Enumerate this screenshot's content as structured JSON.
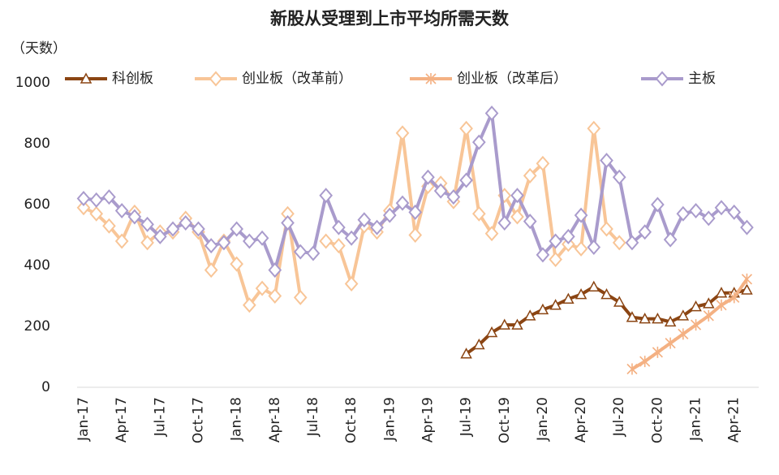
{
  "chart_data": {
    "type": "line",
    "title": "新股从受理到上市平均所需天数",
    "y_label": "（天数）",
    "categories": [
      "Jan-17",
      null,
      null,
      "Apr-17",
      null,
      null,
      "Jul-17",
      null,
      null,
      "Oct-17",
      null,
      null,
      "Jan-18",
      null,
      null,
      "Apr-18",
      null,
      null,
      "Jul-18",
      null,
      null,
      "Oct-18",
      null,
      null,
      "Jan-19",
      null,
      null,
      "Apr-19",
      null,
      null,
      "Jul-19",
      null,
      null,
      "Oct-19",
      null,
      null,
      "Jan-20",
      null,
      null,
      "Apr-20",
      null,
      null,
      "Jul-20",
      null,
      null,
      "Oct-20",
      null,
      null,
      "Jan-21",
      null,
      null,
      "Apr-21",
      null
    ],
    "ylim": [
      0,
      1000
    ],
    "yticks": [
      0,
      200,
      400,
      600,
      800,
      1000
    ],
    "grid": false,
    "series": [
      {
        "name": "科创板",
        "color": "#8b4513",
        "marker": "triangle",
        "values": [
          null,
          null,
          null,
          null,
          null,
          null,
          null,
          null,
          null,
          null,
          null,
          null,
          null,
          null,
          null,
          null,
          null,
          null,
          null,
          null,
          null,
          null,
          null,
          null,
          null,
          null,
          null,
          null,
          null,
          null,
          110,
          140,
          180,
          205,
          205,
          235,
          255,
          270,
          290,
          305,
          330,
          305,
          280,
          230,
          225,
          225,
          215,
          235,
          265,
          275,
          310,
          310,
          320
        ]
      },
      {
        "name": "创业板（改革前）",
        "color": "#f8c597",
        "marker": "diamond",
        "values": [
          590,
          570,
          530,
          480,
          575,
          475,
          510,
          510,
          555,
          510,
          385,
          480,
          405,
          270,
          325,
          300,
          570,
          295,
          null,
          480,
          465,
          340,
          530,
          510,
          580,
          835,
          500,
          660,
          670,
          610,
          850,
          570,
          505,
          630,
          560,
          695,
          735,
          420,
          470,
          455,
          850,
          520,
          475,
          null,
          null,
          null,
          null,
          null,
          null,
          null,
          null,
          null,
          null
        ]
      },
      {
        "name": "创业板（改革后）",
        "color": "#f4b183",
        "marker": "star",
        "values": [
          null,
          null,
          null,
          null,
          null,
          null,
          null,
          null,
          null,
          null,
          null,
          null,
          null,
          null,
          null,
          null,
          null,
          null,
          null,
          null,
          null,
          null,
          null,
          null,
          null,
          null,
          null,
          null,
          null,
          null,
          null,
          null,
          null,
          null,
          null,
          null,
          null,
          null,
          null,
          null,
          null,
          null,
          null,
          60,
          85,
          115,
          145,
          175,
          205,
          235,
          270,
          295,
          355
        ]
      },
      {
        "name": "主板",
        "color": "#a99bcc",
        "marker": "diamond",
        "values": [
          620,
          615,
          625,
          580,
          560,
          535,
          495,
          520,
          540,
          520,
          465,
          475,
          520,
          480,
          490,
          385,
          540,
          445,
          440,
          630,
          525,
          490,
          550,
          525,
          565,
          605,
          575,
          690,
          645,
          625,
          680,
          805,
          900,
          540,
          630,
          545,
          435,
          480,
          495,
          565,
          460,
          745,
          690,
          475,
          510,
          600,
          485,
          570,
          580,
          555,
          590,
          575,
          525
        ]
      }
    ]
  }
}
